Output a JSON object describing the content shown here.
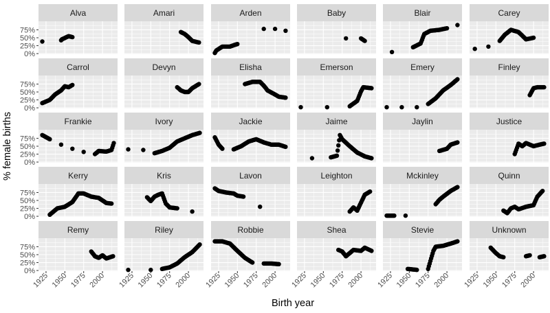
{
  "chart_data": {
    "type": "scatter",
    "layout": "facet_wrap",
    "ncol": 6,
    "xlabel": "Birth year",
    "ylabel": "% female births",
    "xlim": [
      1915,
      2020
    ],
    "ylim": [
      -0.02,
      1.02
    ],
    "xticks": [
      1925,
      1950,
      1975,
      2000
    ],
    "xtick_labels": [
      "1925",
      "1950",
      "1975",
      "2000"
    ],
    "yticks": [
      0,
      0.25,
      0.5,
      0.75
    ],
    "ytick_labels": [
      "0%",
      "25%",
      "50%",
      "75%"
    ],
    "panels": [
      {
        "name": "Alva",
        "series": [
          [
            1920,
            0.38
          ],
          [
            1945,
            0.42
          ],
          [
            1946,
            0.45
          ],
          [
            1955,
            0.55
          ],
          [
            1960,
            0.52
          ]
        ]
      },
      {
        "name": "Amari",
        "series": [
          [
            1990,
            0.68
          ],
          [
            1995,
            0.62
          ],
          [
            2000,
            0.52
          ],
          [
            2005,
            0.4
          ],
          [
            2014,
            0.35
          ]
        ]
      },
      {
        "name": "Arden",
        "series": [
          [
            1920,
            0.02
          ],
          [
            1922,
            0.1
          ],
          [
            1930,
            0.22
          ],
          [
            1940,
            0.22
          ],
          [
            1947,
            0.28
          ],
          [
            1950,
            0.3
          ],
          [
            1985,
            0.78
          ],
          [
            2000,
            0.78
          ],
          [
            2014,
            0.72
          ]
        ]
      },
      {
        "name": "Baby",
        "series": [
          [
            1980,
            0.48
          ],
          [
            2000,
            0.48
          ],
          [
            2005,
            0.4
          ]
        ]
      },
      {
        "name": "Blair",
        "series": [
          [
            1927,
            0.05
          ],
          [
            1955,
            0.2
          ],
          [
            1965,
            0.32
          ],
          [
            1970,
            0.62
          ],
          [
            1978,
            0.72
          ],
          [
            1990,
            0.75
          ],
          [
            2000,
            0.8
          ],
          [
            2014,
            0.9
          ]
        ]
      },
      {
        "name": "Carey",
        "series": [
          [
            1922,
            0.15
          ],
          [
            1940,
            0.22
          ],
          [
            1955,
            0.4
          ],
          [
            1962,
            0.6
          ],
          [
            1970,
            0.75
          ],
          [
            1980,
            0.68
          ],
          [
            1990,
            0.45
          ],
          [
            2000,
            0.5
          ]
        ]
      },
      {
        "name": "Carrol",
        "series": [
          [
            1920,
            0.15
          ],
          [
            1930,
            0.25
          ],
          [
            1937,
            0.42
          ],
          [
            1945,
            0.55
          ],
          [
            1950,
            0.68
          ],
          [
            1955,
            0.65
          ],
          [
            1960,
            0.72
          ]
        ]
      },
      {
        "name": "Devyn",
        "series": [
          [
            1985,
            0.65
          ],
          [
            1990,
            0.55
          ],
          [
            1995,
            0.5
          ],
          [
            2000,
            0.5
          ],
          [
            2005,
            0.62
          ],
          [
            2014,
            0.75
          ]
        ]
      },
      {
        "name": "Elisha",
        "series": [
          [
            1960,
            0.75
          ],
          [
            1970,
            0.82
          ],
          [
            1980,
            0.82
          ],
          [
            1985,
            0.7
          ],
          [
            1990,
            0.55
          ],
          [
            2000,
            0.42
          ],
          [
            2005,
            0.35
          ],
          [
            2014,
            0.32
          ]
        ]
      },
      {
        "name": "Emerson",
        "series": [
          [
            1920,
            0.02
          ],
          [
            1955,
            0.02
          ],
          [
            1985,
            0.05
          ],
          [
            1995,
            0.22
          ],
          [
            2000,
            0.52
          ],
          [
            2003,
            0.65
          ],
          [
            2014,
            0.62
          ]
        ]
      },
      {
        "name": "Emery",
        "series": [
          [
            1920,
            0.02
          ],
          [
            1940,
            0.02
          ],
          [
            1960,
            0.02
          ],
          [
            1975,
            0.12
          ],
          [
            1985,
            0.3
          ],
          [
            1995,
            0.55
          ],
          [
            2005,
            0.72
          ],
          [
            2014,
            0.9
          ]
        ]
      },
      {
        "name": "Finley",
        "series": [
          [
            1995,
            0.4
          ],
          [
            2000,
            0.62
          ],
          [
            2005,
            0.65
          ],
          [
            2014,
            0.65
          ]
        ]
      },
      {
        "name": "Frankie",
        "series": [
          [
            1920,
            0.85
          ],
          [
            1930,
            0.72
          ],
          [
            1945,
            0.55
          ],
          [
            1960,
            0.42
          ],
          [
            1975,
            0.32
          ],
          [
            1990,
            0.25
          ],
          [
            1995,
            0.35
          ],
          [
            2005,
            0.33
          ],
          [
            2012,
            0.38
          ],
          [
            2015,
            0.6
          ]
        ]
      },
      {
        "name": "Ivory",
        "series": [
          [
            1920,
            0.4
          ],
          [
            1940,
            0.38
          ],
          [
            1955,
            0.28
          ],
          [
            1965,
            0.35
          ],
          [
            1975,
            0.45
          ],
          [
            1985,
            0.65
          ],
          [
            1995,
            0.75
          ],
          [
            2005,
            0.85
          ],
          [
            2015,
            0.92
          ]
        ]
      },
      {
        "name": "Jackie",
        "series": [
          [
            1920,
            0.78
          ],
          [
            1925,
            0.55
          ],
          [
            1930,
            0.42
          ],
          [
            1945,
            0.4
          ],
          [
            1955,
            0.5
          ],
          [
            1965,
            0.65
          ],
          [
            1975,
            0.72
          ],
          [
            1985,
            0.62
          ],
          [
            1995,
            0.55
          ],
          [
            2005,
            0.55
          ],
          [
            2014,
            0.48
          ]
        ]
      },
      {
        "name": "Jaime",
        "series": [
          [
            1935,
            0.12
          ],
          [
            1960,
            0.15
          ],
          [
            1968,
            0.2
          ],
          [
            1972,
            0.85
          ],
          [
            1975,
            0.72
          ],
          [
            1985,
            0.5
          ],
          [
            1995,
            0.3
          ],
          [
            2005,
            0.18
          ],
          [
            2014,
            0.12
          ]
        ]
      },
      {
        "name": "Jaylin",
        "series": [
          [
            1990,
            0.35
          ],
          [
            2000,
            0.42
          ],
          [
            2005,
            0.55
          ],
          [
            2014,
            0.62
          ]
        ]
      },
      {
        "name": "Justice",
        "series": [
          [
            1975,
            0.25
          ],
          [
            1980,
            0.58
          ],
          [
            1985,
            0.5
          ],
          [
            1990,
            0.6
          ],
          [
            2000,
            0.5
          ],
          [
            2008,
            0.55
          ],
          [
            2014,
            0.58
          ]
        ]
      },
      {
        "name": "Kerry",
        "series": [
          [
            1930,
            0.05
          ],
          [
            1940,
            0.25
          ],
          [
            1950,
            0.3
          ],
          [
            1960,
            0.45
          ],
          [
            1968,
            0.72
          ],
          [
            1975,
            0.72
          ],
          [
            1985,
            0.62
          ],
          [
            1995,
            0.58
          ],
          [
            2005,
            0.42
          ],
          [
            2012,
            0.4
          ]
        ]
      },
      {
        "name": "Kris",
        "series": [
          [
            1945,
            0.6
          ],
          [
            1950,
            0.48
          ],
          [
            1955,
            0.62
          ],
          [
            1960,
            0.68
          ],
          [
            1965,
            0.72
          ],
          [
            1970,
            0.4
          ],
          [
            1975,
            0.28
          ],
          [
            1985,
            0.25
          ],
          [
            2005,
            0.15
          ]
        ]
      },
      {
        "name": "Lavon",
        "series": [
          [
            1920,
            0.88
          ],
          [
            1925,
            0.8
          ],
          [
            1935,
            0.75
          ],
          [
            1945,
            0.72
          ],
          [
            1950,
            0.65
          ],
          [
            1958,
            0.62
          ],
          [
            1980,
            0.3
          ]
        ]
      },
      {
        "name": "Leighton",
        "series": [
          [
            1985,
            0.15
          ],
          [
            1990,
            0.28
          ],
          [
            1995,
            0.18
          ],
          [
            2005,
            0.68
          ],
          [
            2012,
            0.78
          ]
        ]
      },
      {
        "name": "Mckinley",
        "series": [
          [
            1920,
            0.02
          ],
          [
            1930,
            0.02
          ],
          [
            1945,
            0.02
          ],
          [
            1985,
            0.38
          ],
          [
            1990,
            0.52
          ],
          [
            1995,
            0.62
          ],
          [
            2005,
            0.8
          ],
          [
            2014,
            0.92
          ]
        ]
      },
      {
        "name": "Quinn",
        "series": [
          [
            1960,
            0.18
          ],
          [
            1965,
            0.1
          ],
          [
            1970,
            0.25
          ],
          [
            1975,
            0.3
          ],
          [
            1980,
            0.22
          ],
          [
            1990,
            0.3
          ],
          [
            2000,
            0.35
          ],
          [
            2005,
            0.62
          ],
          [
            2012,
            0.8
          ]
        ]
      },
      {
        "name": "Remy",
        "series": [
          [
            1985,
            0.6
          ],
          [
            1990,
            0.45
          ],
          [
            1995,
            0.4
          ],
          [
            2000,
            0.48
          ],
          [
            2005,
            0.38
          ],
          [
            2014,
            0.45
          ]
        ]
      },
      {
        "name": "Riley",
        "series": [
          [
            1920,
            0.02
          ],
          [
            1950,
            0.02
          ],
          [
            1965,
            0.05
          ],
          [
            1975,
            0.1
          ],
          [
            1985,
            0.22
          ],
          [
            1995,
            0.42
          ],
          [
            2005,
            0.58
          ],
          [
            2015,
            0.82
          ]
        ]
      },
      {
        "name": "Robbie",
        "series": [
          [
            1920,
            0.92
          ],
          [
            1930,
            0.92
          ],
          [
            1940,
            0.85
          ],
          [
            1950,
            0.62
          ],
          [
            1960,
            0.4
          ],
          [
            1970,
            0.25
          ],
          [
            1985,
            0.22
          ],
          [
            1995,
            0.22
          ],
          [
            2005,
            0.2
          ]
        ]
      },
      {
        "name": "Shea",
        "series": [
          [
            1970,
            0.65
          ],
          [
            1975,
            0.6
          ],
          [
            1980,
            0.45
          ],
          [
            1990,
            0.65
          ],
          [
            2000,
            0.62
          ],
          [
            2005,
            0.72
          ],
          [
            2014,
            0.62
          ]
        ]
      },
      {
        "name": "Stevie",
        "series": [
          [
            1948,
            0.05
          ],
          [
            1960,
            0.02
          ],
          [
            1975,
            0.05
          ],
          [
            1978,
            0.3
          ],
          [
            1982,
            0.62
          ],
          [
            1985,
            0.75
          ],
          [
            1995,
            0.78
          ],
          [
            2005,
            0.85
          ],
          [
            2014,
            0.92
          ]
        ]
      },
      {
        "name": "Unknown",
        "series": [
          [
            1943,
            0.72
          ],
          [
            1950,
            0.55
          ],
          [
            1955,
            0.45
          ],
          [
            1960,
            0.42
          ],
          [
            1990,
            0.45
          ],
          [
            1995,
            0.48
          ],
          [
            2008,
            0.42
          ],
          [
            2014,
            0.45
          ]
        ]
      }
    ]
  }
}
